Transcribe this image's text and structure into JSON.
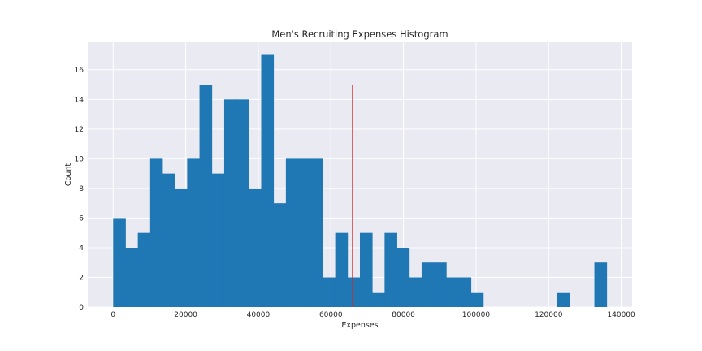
{
  "chart_data": {
    "type": "bar",
    "title": "Men's Recruiting Expenses Histogram",
    "xlabel": "Expenses",
    "ylabel": "Count",
    "xlim": [
      -7000,
      143000
    ],
    "ylim": [
      0,
      17.85
    ],
    "x_ticks": [
      0,
      20000,
      40000,
      60000,
      80000,
      100000,
      120000,
      140000
    ],
    "y_ticks": [
      0,
      2,
      4,
      6,
      8,
      10,
      12,
      14,
      16
    ],
    "grid": true,
    "background": "#eaeaf2",
    "bar_color": "#1f77b4",
    "line_color": "#d62728",
    "bin_start": 0,
    "bin_width": 3400,
    "counts": [
      6,
      4,
      5,
      10,
      9,
      8,
      10,
      15,
      9,
      14,
      14,
      8,
      17,
      7,
      10,
      10,
      10,
      2,
      5,
      2,
      5,
      1,
      5,
      4,
      2,
      3,
      3,
      2,
      2,
      1,
      0,
      0,
      0,
      0,
      0,
      0,
      1,
      0,
      0,
      3
    ],
    "vline": {
      "x": 66000,
      "y_min": 0,
      "y_max": 15
    }
  }
}
